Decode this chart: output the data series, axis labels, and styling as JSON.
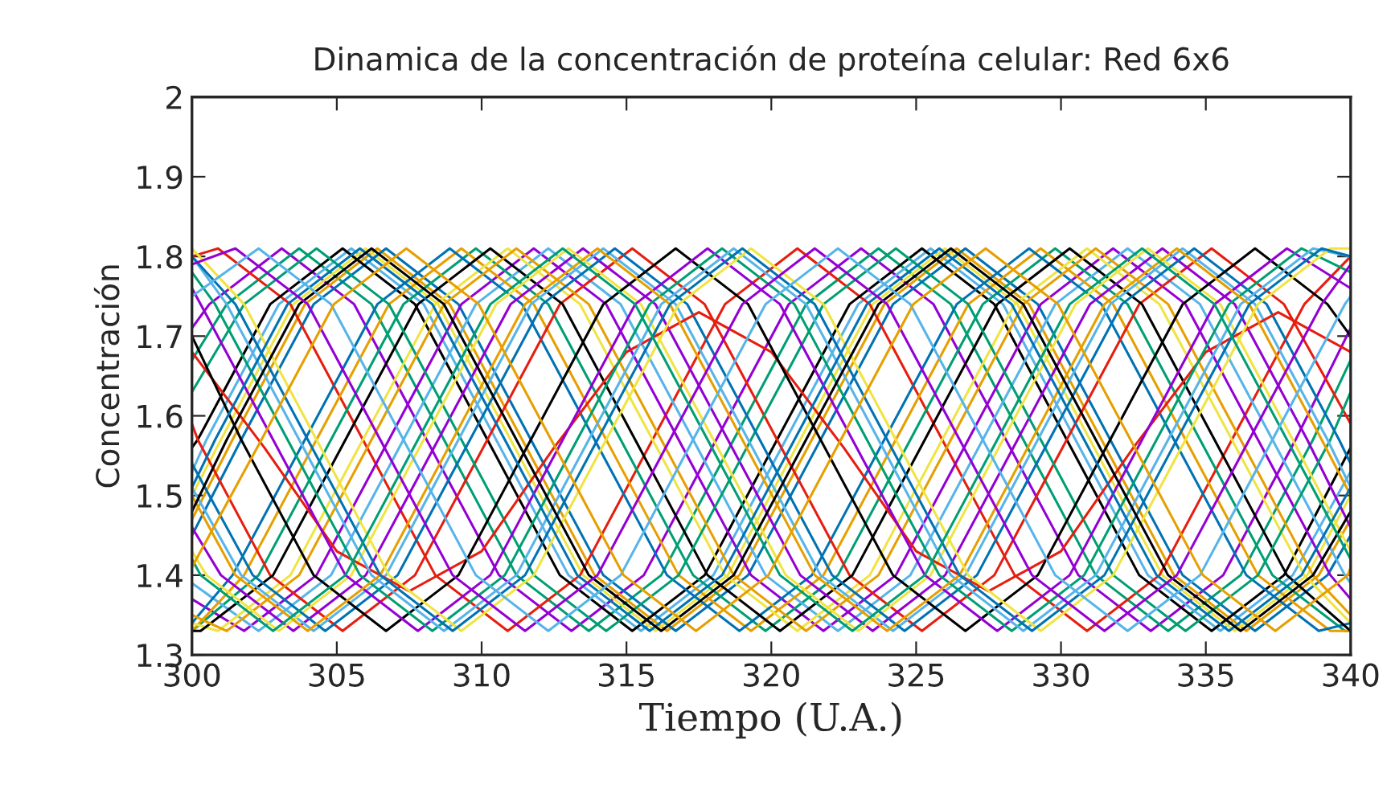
{
  "chart_data": {
    "type": "line",
    "title": "Dinamica de la concentración de proteína celular: Red 6x6",
    "xlabel": "Tiempo (U.A.)",
    "ylabel": "Concentración",
    "xlim": [
      300,
      340
    ],
    "xticks": [
      300,
      305,
      310,
      315,
      320,
      325,
      330,
      335,
      340
    ],
    "ylim": [
      1.3,
      2
    ],
    "yticks": [
      1.3,
      1.4,
      1.5,
      1.6,
      1.7,
      1.8,
      1.9,
      2
    ],
    "grid": false,
    "legend": false,
    "marker": "none",
    "line_style": "solid",
    "series": [
      {
        "color": "#9400d3",
        "x": [
          300,
          300.6,
          303.1,
          305.6,
          308.1,
          310.6,
          313.1,
          315.6,
          318.1,
          320.6,
          323.1,
          325.6,
          328.1,
          330.6,
          333.1,
          335.6,
          338.1,
          340
        ],
        "values": [
          1.71,
          1.74,
          1.81,
          1.74,
          1.57,
          1.4,
          1.33,
          1.4,
          1.57,
          1.74,
          1.81,
          1.74,
          1.57,
          1.4,
          1.33,
          1.4,
          1.57,
          1.71
        ]
      },
      {
        "color": "#009e73",
        "x": [
          300,
          301.2,
          303.7,
          306.2,
          308.7,
          311.2,
          313.7,
          316.2,
          318.7,
          321.2,
          323.7,
          326.2,
          328.7,
          331.2,
          333.7,
          336.2,
          338.7,
          340
        ],
        "values": [
          1.67,
          1.74,
          1.81,
          1.74,
          1.57,
          1.4,
          1.33,
          1.4,
          1.57,
          1.74,
          1.81,
          1.74,
          1.57,
          1.4,
          1.33,
          1.4,
          1.57,
          1.67
        ]
      },
      {
        "color": "#56b4e9",
        "x": [
          300,
          300.5,
          303,
          305.5,
          308,
          310.5,
          313,
          315.5,
          318,
          320.5,
          323,
          325.5,
          328,
          330.5,
          333,
          335.5,
          338,
          340
        ],
        "values": [
          1.53,
          1.57,
          1.74,
          1.81,
          1.74,
          1.57,
          1.4,
          1.33,
          1.4,
          1.57,
          1.74,
          1.81,
          1.74,
          1.57,
          1.4,
          1.33,
          1.4,
          1.53
        ]
      },
      {
        "color": "#e69f00",
        "x": [
          300,
          301.4,
          303.9,
          306.4,
          308.9,
          311.4,
          313.9,
          316.4,
          318.9,
          321.4,
          323.9,
          326.4,
          328.9,
          331.4,
          333.9,
          336.4,
          338.9,
          340
        ],
        "values": [
          1.47,
          1.57,
          1.74,
          1.81,
          1.74,
          1.57,
          1.4,
          1.33,
          1.4,
          1.57,
          1.74,
          1.81,
          1.74,
          1.57,
          1.4,
          1.33,
          1.4,
          1.47
        ]
      },
      {
        "color": "#f0e442",
        "x": [
          300,
          301,
          303.5,
          306,
          308.5,
          311,
          313.5,
          316,
          318.5,
          321,
          323.5,
          326,
          328.5,
          331,
          333.5,
          336,
          338.5,
          340
        ],
        "values": [
          1.5,
          1.57,
          1.74,
          1.81,
          1.74,
          1.57,
          1.4,
          1.33,
          1.4,
          1.57,
          1.74,
          1.81,
          1.74,
          1.57,
          1.4,
          1.33,
          1.4,
          1.5
        ]
      },
      {
        "color": "#0072b2",
        "x": [
          300,
          301.7,
          304.2,
          306.7,
          309.2,
          311.7,
          314.2,
          316.7,
          319.2,
          321.7,
          324.2,
          326.7,
          329.2,
          331.7,
          334.2,
          336.7,
          339.2,
          340
        ],
        "values": [
          1.45,
          1.57,
          1.74,
          1.81,
          1.74,
          1.57,
          1.4,
          1.33,
          1.4,
          1.57,
          1.74,
          1.81,
          1.74,
          1.57,
          1.4,
          1.33,
          1.4,
          1.45
        ]
      },
      {
        "color": "#e51e10",
        "x": [
          300,
          300.9,
          303.4,
          305.9,
          308.4,
          310.9,
          313.4,
          315.9,
          318.4,
          320.9,
          323.4,
          325.9,
          328.4,
          330.9,
          333.4,
          335.9,
          338.4,
          340
        ],
        "values": [
          1.8,
          1.81,
          1.74,
          1.57,
          1.4,
          1.33,
          1.4,
          1.57,
          1.74,
          1.81,
          1.74,
          1.57,
          1.4,
          1.33,
          1.4,
          1.57,
          1.74,
          1.8
        ]
      },
      {
        "color": "#000000",
        "x": [
          300,
          300.2,
          302.7,
          305.2,
          307.7,
          310.2,
          312.7,
          315.2,
          317.7,
          320.2,
          322.7,
          325.2,
          327.7,
          330.2,
          332.7,
          335.2,
          337.7,
          340
        ],
        "values": [
          1.56,
          1.57,
          1.74,
          1.81,
          1.74,
          1.57,
          1.4,
          1.33,
          1.4,
          1.57,
          1.74,
          1.81,
          1.74,
          1.57,
          1.4,
          1.33,
          1.4,
          1.56
        ]
      },
      {
        "color": "#9400d3",
        "x": [
          300,
          301.8,
          304.3,
          306.8,
          309.3,
          311.8,
          314.3,
          316.8,
          319.3,
          321.8,
          324.3,
          326.8,
          329.3,
          331.8,
          334.3,
          336.8,
          339.3,
          340
        ],
        "values": [
          1.37,
          1.33,
          1.4,
          1.57,
          1.74,
          1.81,
          1.74,
          1.57,
          1.4,
          1.33,
          1.4,
          1.57,
          1.74,
          1.81,
          1.74,
          1.57,
          1.4,
          1.37
        ]
      },
      {
        "color": "#009e73",
        "x": [
          300,
          302.3,
          304.8,
          307.3,
          309.8,
          312.3,
          314.8,
          317.3,
          319.8,
          322.3,
          324.8,
          327.3,
          329.8,
          332.3,
          334.8,
          337.3,
          339.8,
          340
        ],
        "values": [
          1.33,
          1.4,
          1.57,
          1.74,
          1.81,
          1.74,
          1.57,
          1.4,
          1.33,
          1.4,
          1.57,
          1.74,
          1.81,
          1.74,
          1.57,
          1.4,
          1.33,
          1.33
        ]
      },
      {
        "color": "#56b4e9",
        "x": [
          300,
          302.3,
          304.8,
          307.3,
          309.8,
          312.3,
          314.8,
          317.3,
          319.8,
          322.3,
          324.8,
          327.3,
          329.8,
          332.3,
          334.8,
          337.3,
          339.8,
          340
        ],
        "values": [
          1.39,
          1.33,
          1.4,
          1.57,
          1.74,
          1.81,
          1.74,
          1.57,
          1.4,
          1.33,
          1.4,
          1.57,
          1.74,
          1.81,
          1.74,
          1.57,
          1.4,
          1.39
        ]
      },
      {
        "color": "#e69f00",
        "x": [
          300,
          301.8,
          304.3,
          306.8,
          309.3,
          311.8,
          314.3,
          316.8,
          319.3,
          321.8,
          324.3,
          326.8,
          329.3,
          331.8,
          334.3,
          336.8,
          339.3,
          340
        ],
        "values": [
          1.33,
          1.4,
          1.57,
          1.74,
          1.81,
          1.74,
          1.57,
          1.4,
          1.33,
          1.4,
          1.57,
          1.74,
          1.81,
          1.74,
          1.57,
          1.4,
          1.33,
          1.33
        ]
      },
      {
        "color": "#f0e442",
        "x": [
          300,
          300.9,
          303.4,
          305.9,
          308.4,
          310.9,
          313.4,
          315.9,
          318.4,
          320.9,
          323.4,
          325.9,
          328.4,
          330.9,
          333.4,
          335.9,
          338.4,
          340
        ],
        "values": [
          1.34,
          1.33,
          1.4,
          1.57,
          1.74,
          1.81,
          1.74,
          1.57,
          1.4,
          1.33,
          1.4,
          1.57,
          1.74,
          1.81,
          1.74,
          1.57,
          1.4,
          1.34
        ]
      },
      {
        "color": "#0072b2",
        "x": [
          300,
          301.4,
          303.9,
          306.4,
          308.9,
          311.4,
          313.9,
          316.4,
          318.9,
          321.4,
          323.9,
          326.4,
          328.9,
          331.4,
          333.9,
          336.4,
          338.9,
          340
        ],
        "values": [
          1.34,
          1.4,
          1.57,
          1.74,
          1.81,
          1.74,
          1.57,
          1.4,
          1.33,
          1.4,
          1.57,
          1.74,
          1.81,
          1.74,
          1.57,
          1.4,
          1.33,
          1.34
        ]
      },
      {
        "color": "#e51e10",
        "x": [
          300,
          300.2,
          302.7,
          305.2,
          307.7,
          310.2,
          312.7,
          315.2,
          317.7,
          320.2,
          322.7,
          325.2,
          327.7,
          330.2,
          332.7,
          335.2,
          337.7,
          340
        ],
        "values": [
          1.59,
          1.57,
          1.4,
          1.33,
          1.4,
          1.57,
          1.74,
          1.81,
          1.74,
          1.57,
          1.4,
          1.33,
          1.4,
          1.57,
          1.74,
          1.81,
          1.74,
          1.59
        ]
      },
      {
        "color": "#000000",
        "x": [
          300,
          300.3,
          302.8,
          305.3,
          307.8,
          310.3,
          312.8,
          315.3,
          317.8,
          320.3,
          322.8,
          325.3,
          327.8,
          330.3,
          332.8,
          335.3,
          337.8,
          340
        ],
        "values": [
          1.33,
          1.33,
          1.4,
          1.57,
          1.74,
          1.81,
          1.74,
          1.57,
          1.4,
          1.33,
          1.4,
          1.57,
          1.74,
          1.81,
          1.74,
          1.57,
          1.4,
          1.33
        ]
      },
      {
        "color": "#9400d3",
        "x": [
          300,
          301,
          303.5,
          306,
          308.5,
          311,
          313.5,
          316,
          318.5,
          321,
          323.5,
          326,
          328.5,
          331,
          333.5,
          336,
          338.5,
          340
        ],
        "values": [
          1.46,
          1.4,
          1.33,
          1.4,
          1.57,
          1.74,
          1.81,
          1.74,
          1.57,
          1.4,
          1.33,
          1.4,
          1.57,
          1.74,
          1.81,
          1.74,
          1.57,
          1.46
        ]
      },
      {
        "color": "#009e73",
        "x": [
          300,
          301.8,
          304.3,
          306.8,
          309.3,
          311.8,
          314.3,
          316.8,
          319.3,
          321.8,
          324.3,
          326.8,
          329.3,
          331.8,
          334.3,
          336.8,
          339.3,
          340
        ],
        "values": [
          1.63,
          1.74,
          1.81,
          1.74,
          1.57,
          1.4,
          1.33,
          1.4,
          1.57,
          1.74,
          1.81,
          1.74,
          1.57,
          1.4,
          1.33,
          1.4,
          1.57,
          1.63
        ]
      },
      {
        "color": "#56b4e9",
        "x": [
          300,
          301.7,
          304.2,
          306.7,
          309.2,
          311.7,
          314.2,
          316.7,
          319.2,
          321.7,
          324.2,
          326.7,
          329.2,
          331.7,
          334.2,
          336.7,
          339.2,
          340
        ],
        "values": [
          1.51,
          1.4,
          1.33,
          1.4,
          1.57,
          1.74,
          1.81,
          1.74,
          1.57,
          1.4,
          1.33,
          1.4,
          1.57,
          1.74,
          1.81,
          1.74,
          1.57,
          1.51
        ]
      },
      {
        "color": "#e69f00",
        "x": [
          300,
          301.2,
          303.7,
          306.2,
          308.7,
          311.2,
          313.7,
          316.2,
          318.7,
          321.2,
          323.7,
          326.2,
          328.7,
          331.2,
          333.7,
          336.2,
          338.7,
          340
        ],
        "values": [
          1.35,
          1.33,
          1.4,
          1.57,
          1.74,
          1.81,
          1.74,
          1.57,
          1.4,
          1.33,
          1.4,
          1.57,
          1.74,
          1.81,
          1.74,
          1.57,
          1.4,
          1.35
        ]
      },
      {
        "color": "#f0e442",
        "x": [
          300,
          300.5,
          303,
          305.5,
          308,
          310.5,
          313,
          315.5,
          318,
          320.5,
          323,
          325.5,
          328,
          330.5,
          333,
          335.5,
          338,
          340
        ],
        "values": [
          1.43,
          1.4,
          1.33,
          1.4,
          1.57,
          1.74,
          1.81,
          1.74,
          1.57,
          1.4,
          1.33,
          1.4,
          1.57,
          1.74,
          1.81,
          1.74,
          1.57,
          1.43
        ]
      },
      {
        "color": "#0072b2",
        "x": [
          300,
          302.1,
          304.6,
          307.1,
          309.6,
          312.1,
          314.6,
          317.1,
          319.6,
          322.1,
          324.6,
          327.1,
          329.6,
          332.1,
          334.6,
          337.1,
          339.6,
          340
        ],
        "values": [
          1.54,
          1.4,
          1.33,
          1.4,
          1.57,
          1.74,
          1.81,
          1.74,
          1.57,
          1.4,
          1.33,
          1.4,
          1.57,
          1.74,
          1.81,
          1.74,
          1.57,
          1.54
        ]
      },
      {
        "color": "#e51e10",
        "x": [
          300,
          302.5,
          305,
          307.5,
          310,
          312.5,
          315,
          317.5,
          320,
          322.5,
          325,
          327.5,
          330,
          332.5,
          335,
          337.5,
          340
        ],
        "values": [
          1.68,
          1.56,
          1.43,
          1.38,
          1.43,
          1.56,
          1.68,
          1.73,
          1.68,
          1.56,
          1.43,
          1.38,
          1.43,
          1.56,
          1.68,
          1.73,
          1.68
        ]
      },
      {
        "color": "#000000",
        "x": [
          300,
          301.7,
          304.2,
          306.7,
          309.2,
          311.7,
          314.2,
          316.7,
          319.2,
          321.7,
          324.2,
          326.7,
          329.2,
          331.7,
          334.2,
          336.7,
          339.2,
          340
        ],
        "values": [
          1.7,
          1.57,
          1.4,
          1.33,
          1.4,
          1.57,
          1.74,
          1.81,
          1.74,
          1.57,
          1.4,
          1.33,
          1.4,
          1.57,
          1.74,
          1.81,
          1.74,
          1.7
        ]
      },
      {
        "color": "#9400d3",
        "x": [
          300,
          300.3,
          302.8,
          305.3,
          307.8,
          310.3,
          312.8,
          315.3,
          317.8,
          320.3,
          322.8,
          325.3,
          327.8,
          330.3,
          332.8,
          335.3,
          337.8,
          340
        ],
        "values": [
          1.76,
          1.74,
          1.57,
          1.4,
          1.33,
          1.4,
          1.57,
          1.74,
          1.81,
          1.74,
          1.57,
          1.4,
          1.33,
          1.4,
          1.57,
          1.74,
          1.81,
          1.76
        ]
      },
      {
        "color": "#009e73",
        "x": [
          300,
          300.8,
          303.3,
          305.8,
          308.3,
          310.8,
          313.3,
          315.8,
          318.3,
          320.8,
          323.3,
          325.8,
          328.3,
          330.8,
          333.3,
          335.8,
          338.3,
          340
        ],
        "values": [
          1.78,
          1.74,
          1.57,
          1.4,
          1.33,
          1.4,
          1.57,
          1.74,
          1.81,
          1.74,
          1.57,
          1.4,
          1.33,
          1.4,
          1.57,
          1.74,
          1.81,
          1.78
        ]
      },
      {
        "color": "#56b4e9",
        "x": [
          300,
          301.2,
          303.7,
          306.2,
          308.7,
          311.2,
          313.7,
          316.2,
          318.7,
          321.2,
          323.7,
          326.2,
          328.7,
          331.2,
          333.7,
          336.2,
          338.7,
          340
        ],
        "values": [
          1.8,
          1.74,
          1.57,
          1.4,
          1.33,
          1.4,
          1.57,
          1.74,
          1.81,
          1.74,
          1.57,
          1.4,
          1.33,
          1.4,
          1.57,
          1.74,
          1.81,
          1.8
        ]
      },
      {
        "color": "#e69f00",
        "x": [
          300,
          301.5,
          304,
          306.5,
          309,
          311.5,
          314,
          316.5,
          319,
          321.5,
          324,
          326.5,
          329,
          331.5,
          334,
          336.5,
          339,
          340
        ],
        "values": [
          1.5,
          1.4,
          1.33,
          1.4,
          1.57,
          1.74,
          1.81,
          1.74,
          1.57,
          1.4,
          1.33,
          1.4,
          1.57,
          1.74,
          1.81,
          1.74,
          1.57,
          1.5
        ]
      },
      {
        "color": "#f0e442",
        "x": [
          300,
          301.8,
          304.3,
          306.8,
          309.3,
          311.8,
          314.3,
          316.8,
          319.3,
          321.8,
          324.3,
          326.8,
          329.3,
          331.8,
          334.3,
          336.8,
          339.3,
          340
        ],
        "values": [
          1.81,
          1.74,
          1.57,
          1.4,
          1.33,
          1.4,
          1.57,
          1.74,
          1.81,
          1.74,
          1.57,
          1.4,
          1.33,
          1.4,
          1.57,
          1.74,
          1.81,
          1.81
        ]
      },
      {
        "color": "#0072b2",
        "x": [
          300,
          300.8,
          303.3,
          305.8,
          308.3,
          310.8,
          313.3,
          315.8,
          318.3,
          320.8,
          323.3,
          325.8,
          328.3,
          330.8,
          333.3,
          335.8,
          338.3,
          340
        ],
        "values": [
          1.51,
          1.57,
          1.74,
          1.81,
          1.74,
          1.57,
          1.4,
          1.33,
          1.4,
          1.57,
          1.74,
          1.81,
          1.74,
          1.57,
          1.4,
          1.33,
          1.4,
          1.51
        ]
      },
      {
        "color": "#0072b2",
        "x": [
          300,
          301.5,
          304,
          306.5,
          309,
          311.5,
          314,
          316.5,
          319,
          321.5,
          324,
          326.5,
          329,
          331.5,
          334,
          336.5,
          339,
          340
        ],
        "values": [
          1.8,
          1.74,
          1.57,
          1.4,
          1.33,
          1.4,
          1.57,
          1.74,
          1.81,
          1.74,
          1.57,
          1.4,
          1.33,
          1.4,
          1.57,
          1.74,
          1.81,
          1.8
        ]
      },
      {
        "color": "#000000",
        "x": [
          300,
          301.2,
          303.7,
          306.2,
          308.7,
          311.2,
          313.7,
          316.2,
          318.7,
          321.2,
          323.7,
          326.2,
          328.7,
          331.2,
          333.7,
          336.2,
          338.7,
          340
        ],
        "values": [
          1.48,
          1.57,
          1.74,
          1.81,
          1.74,
          1.57,
          1.4,
          1.33,
          1.4,
          1.57,
          1.74,
          1.81,
          1.74,
          1.57,
          1.4,
          1.33,
          1.4,
          1.48
        ]
      },
      {
        "color": "#9400d3",
        "x": [
          300,
          301.5,
          304,
          306.5,
          309,
          311.5,
          314,
          316.5,
          319,
          321.5,
          324,
          326.5,
          329,
          331.5,
          334,
          336.5,
          339,
          340
        ],
        "values": [
          1.79,
          1.81,
          1.74,
          1.57,
          1.4,
          1.33,
          1.4,
          1.57,
          1.74,
          1.81,
          1.74,
          1.57,
          1.4,
          1.33,
          1.4,
          1.57,
          1.74,
          1.79
        ]
      },
      {
        "color": "#009e73",
        "x": [
          300,
          300.3,
          302.8,
          305.3,
          307.8,
          310.3,
          312.8,
          315.3,
          317.8,
          320.3,
          322.8,
          325.3,
          327.8,
          330.3,
          332.8,
          335.3,
          337.8,
          340
        ],
        "values": [
          1.42,
          1.4,
          1.33,
          1.4,
          1.57,
          1.74,
          1.81,
          1.74,
          1.57,
          1.4,
          1.33,
          1.4,
          1.57,
          1.74,
          1.81,
          1.74,
          1.57,
          1.42
        ]
      },
      {
        "color": "#56b4e9",
        "x": [
          300,
          302.3,
          304.8,
          307.3,
          309.8,
          312.3,
          314.8,
          317.3,
          319.8,
          322.3,
          324.8,
          327.3,
          329.8,
          332.3,
          334.8,
          337.3,
          339.8,
          340
        ],
        "values": [
          1.75,
          1.81,
          1.74,
          1.57,
          1.4,
          1.33,
          1.4,
          1.57,
          1.74,
          1.81,
          1.74,
          1.57,
          1.4,
          1.33,
          1.4,
          1.57,
          1.74,
          1.75
        ]
      },
      {
        "color": "#e69f00",
        "x": [
          300,
          302.4,
          304.9,
          307.4,
          309.9,
          312.4,
          314.9,
          317.4,
          319.9,
          322.4,
          324.9,
          327.4,
          329.9,
          332.4,
          334.9,
          337.4,
          339.9,
          340
        ],
        "values": [
          1.41,
          1.57,
          1.74,
          1.81,
          1.74,
          1.57,
          1.4,
          1.33,
          1.4,
          1.57,
          1.74,
          1.81,
          1.74,
          1.57,
          1.4,
          1.33,
          1.4,
          1.41
        ]
      }
    ]
  }
}
